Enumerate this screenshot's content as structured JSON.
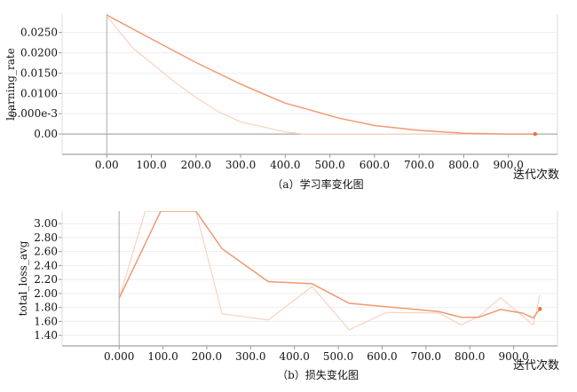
{
  "chart_data": [
    {
      "id": "a",
      "type": "line",
      "caption": "（a）学习率变化图",
      "xlabel": "迭代次数",
      "ylabel": "learning_rate",
      "xlim": [
        -100,
        1010
      ],
      "ylim": [
        -0.005,
        0.0295
      ],
      "x_ticks": [
        0,
        100,
        200,
        300,
        400,
        500,
        600,
        700,
        800,
        900
      ],
      "x_tick_labels": [
        "0.00",
        "100.0",
        "200.0",
        "300.0",
        "400.0",
        "500.0",
        "600.0",
        "700.0",
        "800.0",
        "900.0"
      ],
      "y_ticks": [
        0,
        0.005,
        0.01,
        0.015,
        0.02,
        0.025
      ],
      "y_tick_labels": [
        "0.00",
        "5.000e-3",
        "0.0100",
        "0.0150",
        "0.0200",
        "0.0250"
      ],
      "series": [
        {
          "color": "#f09a72",
          "style": "smoothed",
          "x": [
            0,
            100,
            200,
            300,
            340,
            400,
            440,
            520,
            600,
            700,
            800,
            900,
            960
          ],
          "y": [
            0.0293,
            0.0234,
            0.0176,
            0.0123,
            0.0104,
            0.0076,
            0.0064,
            0.0039,
            0.0021,
            0.0009,
            0.0002,
            0.0,
            0.0
          ]
        },
        {
          "color": "#f7d2c2",
          "style": "raw",
          "x": [
            0,
            60,
            100,
            150,
            200,
            250,
            300,
            340,
            400,
            440,
            500,
            960
          ],
          "y": [
            0.029,
            0.021,
            0.0175,
            0.013,
            0.009,
            0.0055,
            0.003,
            0.002,
            0.0005,
            0.0,
            0.0,
            0.0
          ]
        }
      ]
    },
    {
      "id": "b",
      "type": "line",
      "caption": "（b）损失变化图",
      "xlabel": "迭代次数",
      "ylabel": "total_loss_avg",
      "xlim": [
        -130,
        1000
      ],
      "ylim": [
        1.25,
        3.18
      ],
      "x_ticks": [
        0,
        100,
        200,
        300,
        400,
        500,
        600,
        700,
        800,
        900
      ],
      "x_tick_labels": [
        "0.000",
        "100.0",
        "200.0",
        "300.0",
        "400.0",
        "500.0",
        "600.0",
        "700.0",
        "800.0",
        "900.0"
      ],
      "y_ticks": [
        1.4,
        1.6,
        1.8,
        2.0,
        2.2,
        2.4,
        2.6,
        2.8,
        3.0
      ],
      "y_tick_labels": [
        "1.40",
        "1.60",
        "1.80",
        "2.00",
        "2.20",
        "2.40",
        "2.60",
        "2.80",
        "3.00"
      ],
      "series": [
        {
          "color": "#f09a72",
          "style": "smoothed",
          "x": [
            0,
            95,
            175,
            235,
            340,
            440,
            525,
            630,
            730,
            780,
            820,
            870,
            920,
            945,
            960
          ],
          "y": [
            1.93,
            3.18,
            3.18,
            2.64,
            2.17,
            2.14,
            1.86,
            1.8,
            1.74,
            1.66,
            1.66,
            1.77,
            1.72,
            1.65,
            1.78
          ]
        },
        {
          "color": "#f7d2c2",
          "style": "raw",
          "x": [
            0,
            60,
            175,
            235,
            340,
            440,
            525,
            610,
            730,
            780,
            820,
            870,
            920,
            945,
            960
          ],
          "y": [
            1.93,
            3.18,
            3.18,
            1.71,
            1.62,
            2.1,
            1.48,
            1.73,
            1.72,
            1.55,
            1.67,
            1.94,
            1.68,
            1.55,
            1.98
          ]
        }
      ]
    }
  ]
}
